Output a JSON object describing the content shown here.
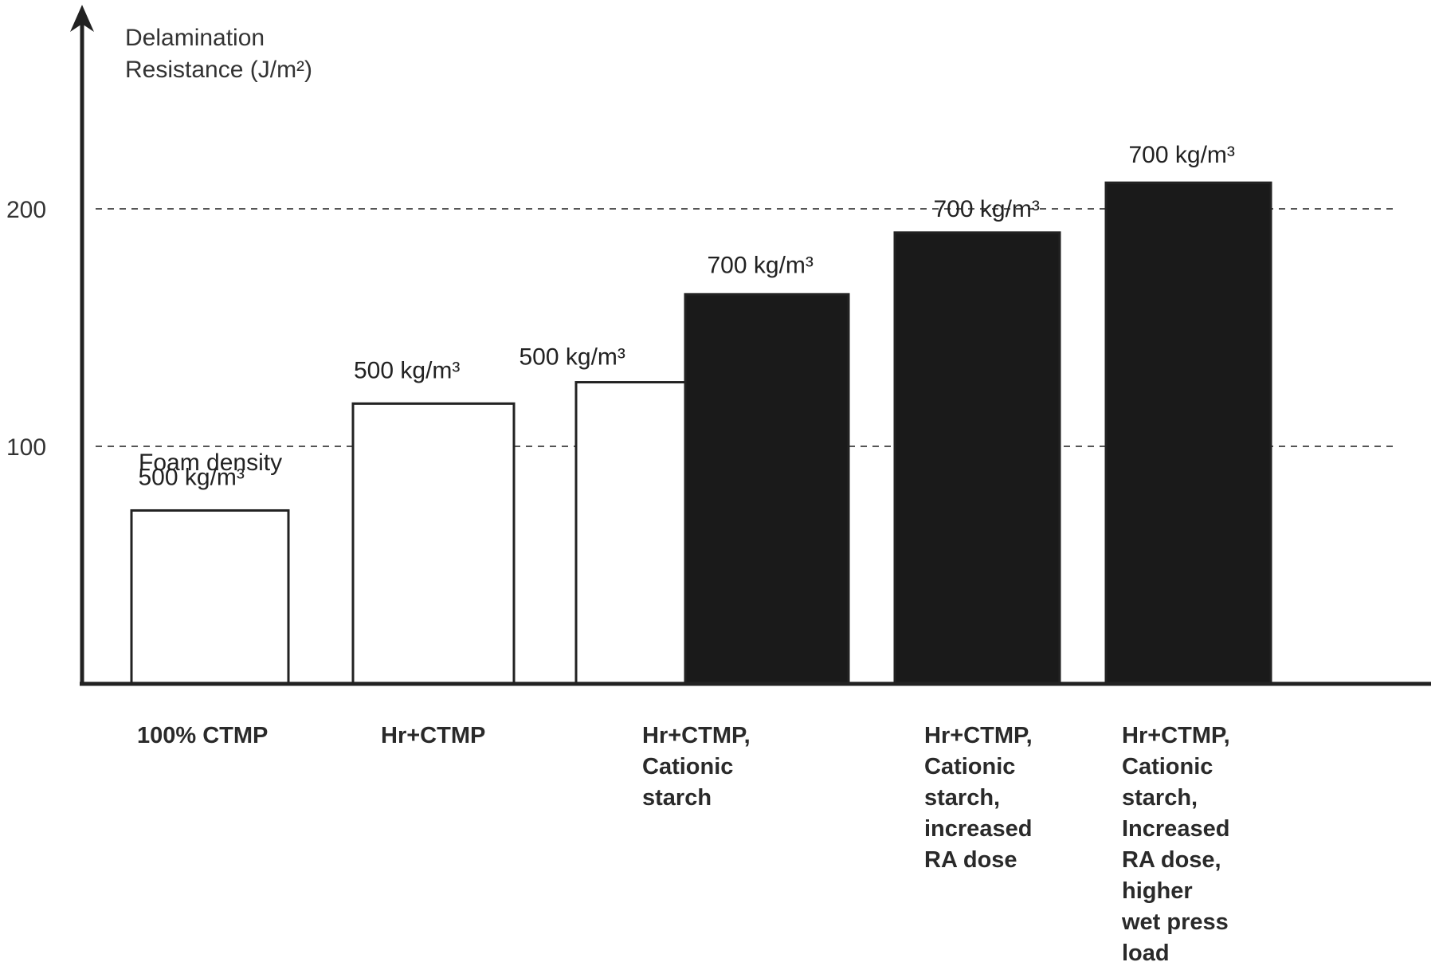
{
  "chart_data": {
    "type": "bar",
    "ylabel_lines": [
      "Delamination",
      "Resistance (J/m²)"
    ],
    "yticks": [
      100,
      200
    ],
    "ylim": [
      0,
      290
    ],
    "grid": "dashed horizontal lines at 100 and 200",
    "colors": {
      "white_bar_fill": "#ffffff",
      "dark_bar_fill": "#1a1a1a",
      "axis": "#222222"
    },
    "note_label": "Foam density",
    "categories": [
      {
        "label_lines": [
          "100%  CTMP"
        ]
      },
      {
        "label_lines": [
          "Hr+CTMP"
        ]
      },
      {
        "label_lines": [
          "Hr+CTMP,",
          "Cationic",
          "starch"
        ]
      },
      {
        "label_lines": [
          "Hr+CTMP,",
          "Cationic",
          "starch,",
          "increased",
          "RA dose"
        ]
      },
      {
        "label_lines": [
          "Hr+CTMP,",
          "Cationic",
          "starch,",
          "Increased",
          "RA dose,",
          "higher",
          "wet press",
          "load"
        ]
      }
    ],
    "bars": [
      {
        "category_index": 0,
        "value": 73,
        "style": "white",
        "label": "500 kg/m³"
      },
      {
        "category_index": 1,
        "value": 118,
        "style": "white",
        "label": "500 kg/m³"
      },
      {
        "category_index": 2,
        "value": 127,
        "style": "white",
        "label": "500 kg/m³"
      },
      {
        "category_index": 2,
        "value": 164,
        "style": "dark",
        "label": "700 kg/m³"
      },
      {
        "category_index": 3,
        "value": 190,
        "style": "dark",
        "label": "700 kg/m³"
      },
      {
        "category_index": 4,
        "value": 211,
        "style": "dark",
        "label": "700 kg/m³"
      }
    ]
  }
}
